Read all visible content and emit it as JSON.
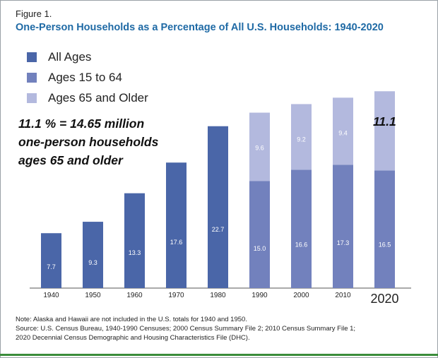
{
  "figure_label": "Figure 1.",
  "title": "One-Person Households as a Percentage of All U.S. Households: 1940-2020",
  "annotation": {
    "line1": "11.1 % = 14.65 million",
    "line2": "one-person households",
    "line3": "ages 65 and older"
  },
  "highlight_value": "11.1",
  "note": {
    "line1": "Note: Alaska and Hawaii are not included in the U.S. totals for 1940 and 1950.",
    "line2": "Source: U.S. Census Bureau, 1940-1990 Censuses; 2000 Census Summary File 2; 2010 Census Summary File 1;",
    "line3": "2020 Decennial Census Demographic and Housing Characteristics File (DHC)."
  },
  "colors": {
    "all_ages": "#4a66a8",
    "ages_15_64": "#7281bd",
    "ages_65_older": "#b3b9de",
    "title": "#1f6aa5"
  },
  "chart_data": {
    "type": "bar",
    "stacked": true,
    "categories": [
      "1940",
      "1950",
      "1960",
      "1970",
      "1980",
      "1990",
      "2000",
      "2010",
      "2020"
    ],
    "series": [
      {
        "name": "All Ages",
        "color": "#4a66a8",
        "values": [
          7.7,
          9.3,
          13.3,
          17.6,
          22.7,
          null,
          null,
          null,
          null
        ]
      },
      {
        "name": "Ages 15 to 64",
        "color": "#7281bd",
        "values": [
          null,
          null,
          null,
          null,
          null,
          15.0,
          16.6,
          17.3,
          16.5
        ]
      },
      {
        "name": "Ages 65 and Older",
        "color": "#b3b9de",
        "values": [
          null,
          null,
          null,
          null,
          null,
          9.6,
          9.2,
          9.4,
          11.1
        ]
      }
    ],
    "value_labels": {
      "All Ages": [
        "7.7",
        "9.3",
        "13.3",
        "17.6",
        "22.7",
        "",
        "",
        "",
        ""
      ],
      "Ages 15 to 64": [
        "",
        "",
        "",
        "",
        "",
        "15.0",
        "16.6",
        "17.3",
        "16.5"
      ],
      "Ages 65 and Older": [
        "",
        "",
        "",
        "",
        "",
        "9.6",
        "9.2",
        "9.4",
        ""
      ]
    },
    "ylim": [
      0,
      30
    ],
    "grid": false,
    "legend_position": "top-left"
  }
}
